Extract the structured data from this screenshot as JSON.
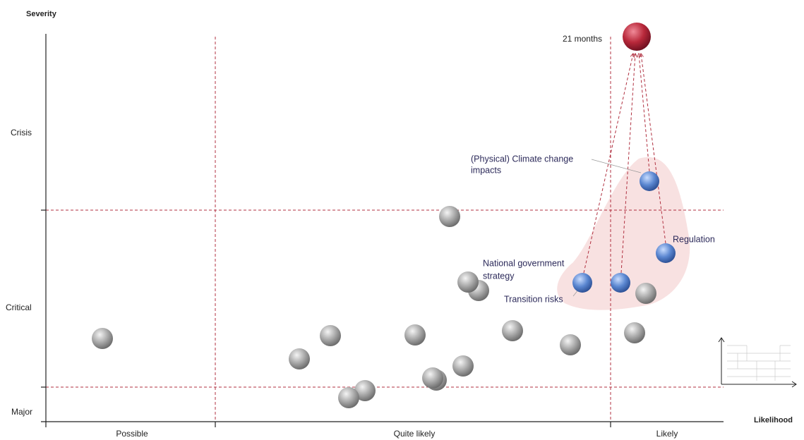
{
  "axes": {
    "y_label": "Severity",
    "x_label": "Likelihood",
    "y_levels": [
      "Crisis",
      "Critical",
      "Major"
    ],
    "x_levels": [
      "Possible",
      "Quite likely",
      "Likely"
    ]
  },
  "annotations": {
    "target": "21 months",
    "risks": [
      {
        "lines": [
          "(Physical) Climate change",
          "impacts"
        ]
      },
      {
        "lines": [
          "Regulation"
        ]
      },
      {
        "lines": [
          "National government",
          "strategy"
        ]
      },
      {
        "lines": [
          "Transition risks"
        ]
      }
    ]
  }
}
